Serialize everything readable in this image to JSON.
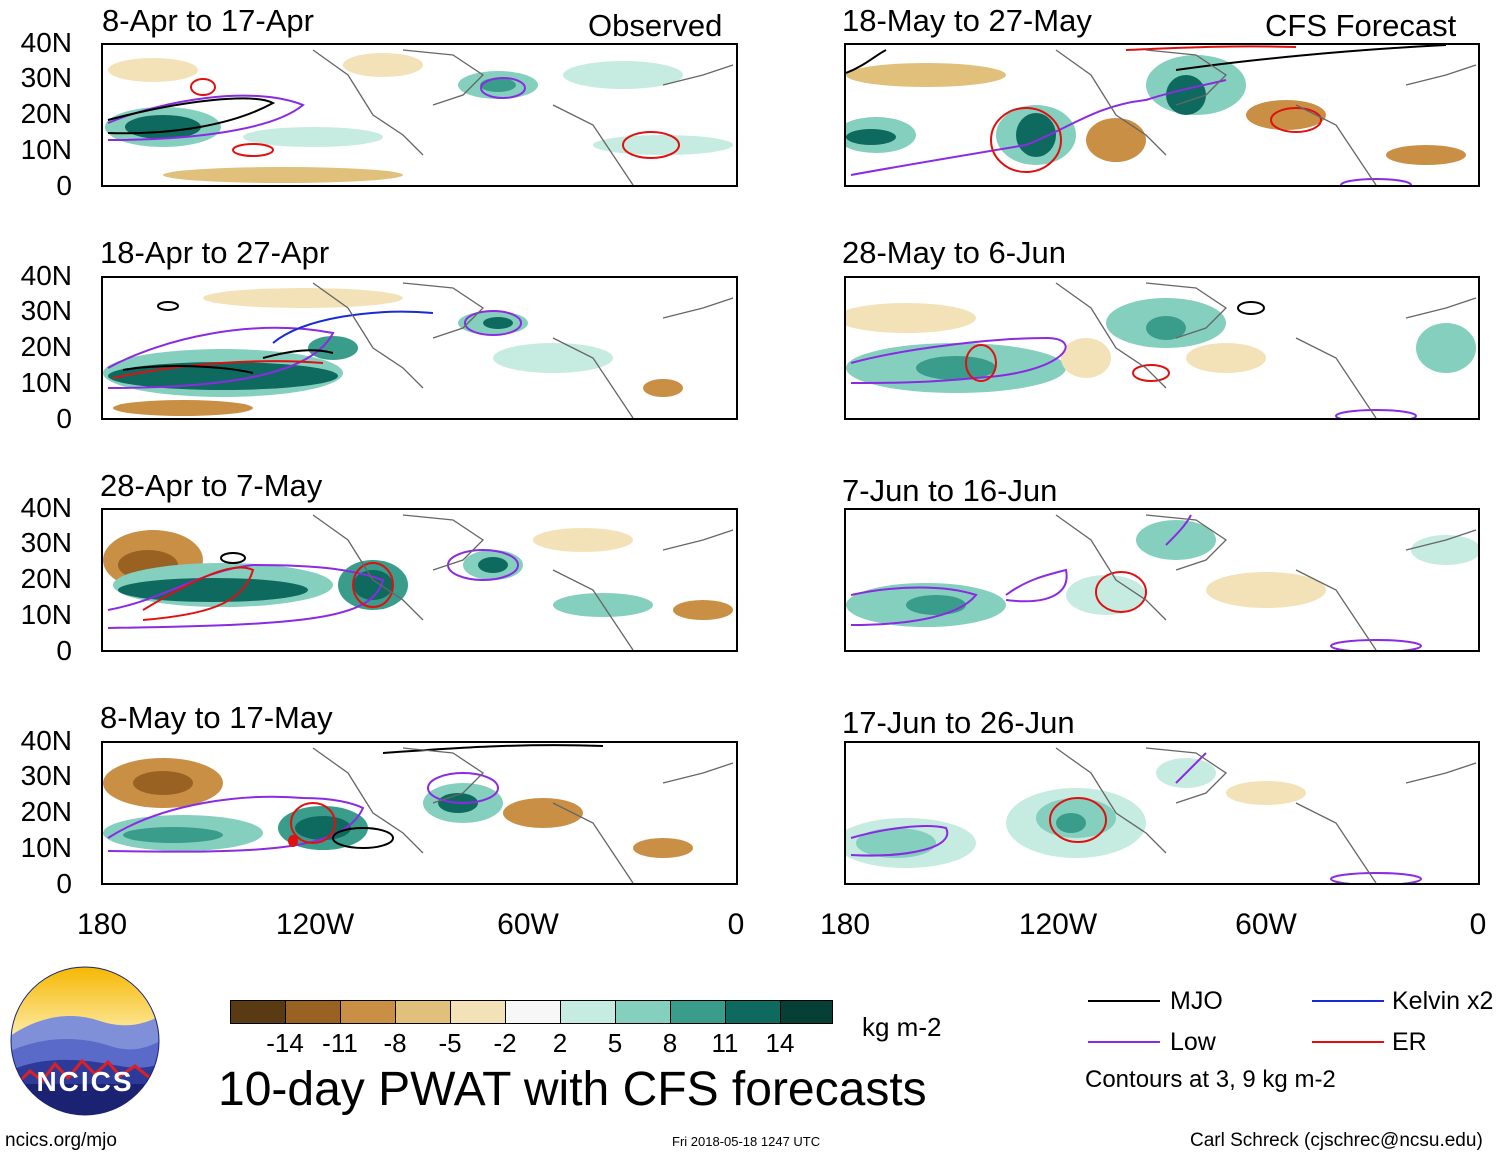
{
  "header": {
    "observed_label": "Observed",
    "forecast_label": "CFS Forecast"
  },
  "panels": {
    "observed": [
      {
        "title": "8-Apr to 17-Apr"
      },
      {
        "title": "18-Apr to 27-Apr"
      },
      {
        "title": "28-Apr to 7-May"
      },
      {
        "title": "8-May to 17-May"
      }
    ],
    "forecast": [
      {
        "title": "18-May to 27-May"
      },
      {
        "title": "28-May to 6-Jun"
      },
      {
        "title": "7-Jun to 16-Jun"
      },
      {
        "title": "17-Jun to 26-Jun"
      }
    ]
  },
  "axes": {
    "lat_labels": [
      "40N",
      "30N",
      "20N",
      "10N",
      "0"
    ],
    "lon_labels": [
      "180",
      "120W",
      "60W",
      "0"
    ]
  },
  "colorbar": {
    "units": "kg m-2",
    "ticks": [
      "-14",
      "-11",
      "-8",
      "-5",
      "-2",
      "2",
      "5",
      "8",
      "11",
      "14"
    ],
    "colors": [
      "#5a3a12",
      "#9a6222",
      "#c99045",
      "#e0c07a",
      "#f3e2b8",
      "#f7f7f7",
      "#c6ebe0",
      "#84cfbd",
      "#3a9c8a",
      "#0e6a5e",
      "#053f36"
    ]
  },
  "legend": {
    "items": [
      {
        "label": "MJO",
        "color": "#000000"
      },
      {
        "label": "Kelvin x2",
        "color": "#1a2ad8"
      },
      {
        "label": "Low",
        "color": "#8a2be2"
      },
      {
        "label": "ER",
        "color": "#e01010"
      }
    ],
    "note": "Contours at 3, 9 kg m-2"
  },
  "main_title": "10-day PWAT with CFS forecasts",
  "logo": {
    "text": "NCICS"
  },
  "footer": {
    "url": "ncics.org/mjo",
    "timestamp": "Fri 2018-05-18 1247 UTC",
    "credit": "Carl Schreck (cjschrec@ncsu.edu)"
  }
}
